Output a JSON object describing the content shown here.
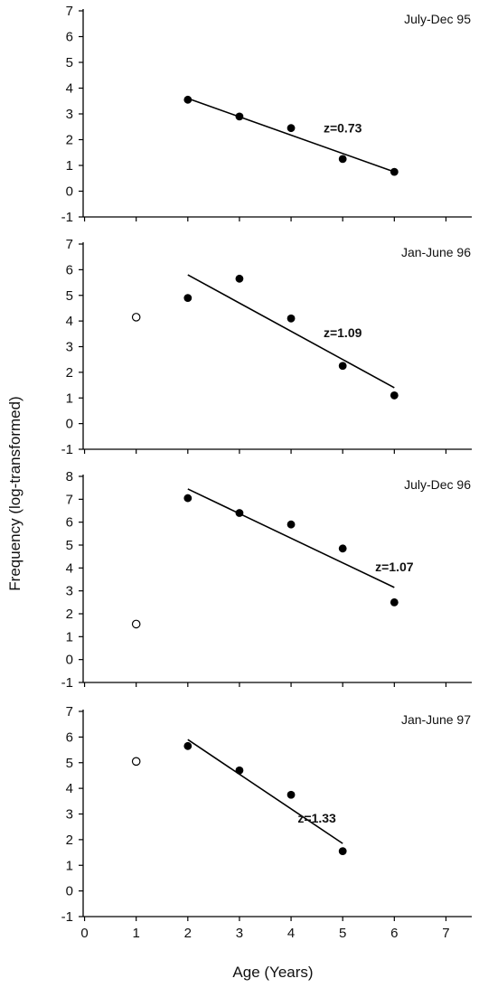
{
  "chart_data": [
    {
      "type": "scatter",
      "panel_label": "July-Dec 95",
      "ylim": [
        -1,
        7
      ],
      "yticks": [
        -1,
        0,
        1,
        2,
        3,
        4,
        5,
        6,
        7
      ],
      "points_filled": [
        [
          2,
          3.55
        ],
        [
          3,
          2.9
        ],
        [
          4,
          2.45
        ],
        [
          5,
          1.25
        ],
        [
          6,
          0.75
        ]
      ],
      "points_open": [],
      "fit_line": [
        [
          2,
          3.6
        ],
        [
          6,
          0.75
        ]
      ],
      "annotation": {
        "text": "z=0.73",
        "x": 5,
        "y": 2.45
      }
    },
    {
      "type": "scatter",
      "panel_label": "Jan-June 96",
      "ylim": [
        -1,
        7
      ],
      "yticks": [
        -1,
        0,
        1,
        2,
        3,
        4,
        5,
        6,
        7
      ],
      "points_filled": [
        [
          2,
          4.9
        ],
        [
          3,
          5.65
        ],
        [
          4,
          4.1
        ],
        [
          5,
          2.25
        ],
        [
          6,
          1.1
        ]
      ],
      "points_open": [
        [
          1,
          4.15
        ]
      ],
      "fit_line": [
        [
          2,
          5.8
        ],
        [
          6,
          1.4
        ]
      ],
      "annotation": {
        "text": "z=1.09",
        "x": 5,
        "y": 3.55
      }
    },
    {
      "type": "scatter",
      "panel_label": "July-Dec 96",
      "ylim": [
        -1,
        8
      ],
      "yticks": [
        -1,
        0,
        1,
        2,
        3,
        4,
        5,
        6,
        7,
        8
      ],
      "points_filled": [
        [
          2,
          7.05
        ],
        [
          3,
          6.4
        ],
        [
          4,
          5.9
        ],
        [
          5,
          4.85
        ],
        [
          6,
          2.5
        ]
      ],
      "points_open": [
        [
          1,
          1.55
        ]
      ],
      "fit_line": [
        [
          2,
          7.45
        ],
        [
          6,
          3.15
        ]
      ],
      "annotation": {
        "text": "z=1.07",
        "x": 6,
        "y": 4.05
      }
    },
    {
      "type": "scatter",
      "panel_label": "Jan-June 97",
      "ylim": [
        -1,
        7
      ],
      "yticks": [
        -1,
        0,
        1,
        2,
        3,
        4,
        5,
        6,
        7
      ],
      "points_filled": [
        [
          2,
          5.65
        ],
        [
          3,
          4.7
        ],
        [
          4,
          3.75
        ],
        [
          5,
          1.55
        ]
      ],
      "points_open": [
        [
          1,
          5.05
        ]
      ],
      "fit_line": [
        [
          2,
          5.9
        ],
        [
          5,
          1.85
        ]
      ],
      "annotation": {
        "text": "z=1.33",
        "x": 4.5,
        "y": 2.85
      }
    }
  ],
  "x_axis": {
    "xlim": [
      -0.5,
      7.5
    ],
    "ticks": [
      0,
      1,
      2,
      3,
      4,
      5,
      6,
      7
    ],
    "tick_labels": [
      "0",
      "1",
      "2",
      "3",
      "4",
      "5",
      "6",
      "7"
    ],
    "label": "Age (Years)"
  },
  "y_axis_label": "Frequency (log-transformed)"
}
